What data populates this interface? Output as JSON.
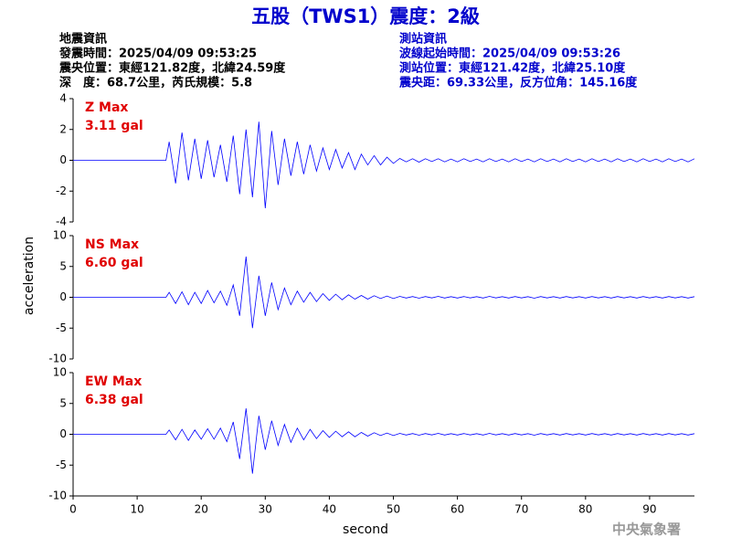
{
  "title": "五股（TWS1）震度：2級",
  "info_left": [
    "地震資訊",
    "發震時間：2025/04/09 09:53:25",
    "震央位置：東經121.82度，北緯24.59度",
    "深　度：68.7公里，芮氏規模：5.8"
  ],
  "info_right": [
    "測站資訊",
    "波線起始時間：2025/04/09 09:53:26",
    "測站位置：東經121.42度，北緯25.10度",
    "震央距：69.33公里，反方位角：145.16度"
  ],
  "y_label": "acceleration",
  "x_label": "second",
  "footer": "中央氣象署",
  "chart_data": [
    {
      "type": "line",
      "max_label": "Z Max",
      "max_value_label": "3.11 gal",
      "color": "#0000ff",
      "x": [
        0,
        14.5,
        15,
        16,
        17,
        18,
        19,
        20,
        21,
        22,
        23,
        24,
        25,
        26,
        27,
        28,
        29,
        30,
        31,
        32,
        33,
        34,
        35,
        36,
        37,
        38,
        39,
        40,
        41,
        42,
        43,
        44,
        45,
        46,
        47,
        48,
        49,
        50,
        51,
        52,
        53,
        54,
        55,
        56,
        57,
        58,
        59,
        60,
        61,
        62,
        63,
        64,
        65,
        66,
        67,
        68,
        69,
        70,
        71,
        72,
        73,
        74,
        75,
        76,
        77,
        78,
        79,
        80,
        81,
        82,
        83,
        84,
        85,
        86,
        87,
        88,
        89,
        90,
        91,
        92,
        93,
        94,
        95,
        96,
        97
      ],
      "values": [
        0,
        0,
        1.2,
        -1.5,
        1.8,
        -1.3,
        1.4,
        -1.2,
        1.3,
        -1.1,
        1.0,
        -1.4,
        1.6,
        -2.2,
        2.0,
        -2.4,
        2.5,
        -3.11,
        1.9,
        -1.6,
        1.4,
        -1.0,
        1.2,
        -0.9,
        1.0,
        -0.7,
        0.8,
        -0.6,
        0.7,
        -0.5,
        0.5,
        -0.6,
        0.4,
        -0.3,
        0.3,
        -0.3,
        0.2,
        -0.2,
        0.12,
        -0.1,
        0.1,
        -0.12,
        0.1,
        -0.08,
        0.1,
        -0.1,
        0.08,
        -0.1,
        0.1,
        -0.08,
        0.08,
        -0.1,
        0.1,
        -0.08,
        0.08,
        -0.1,
        0.1,
        -0.08,
        0.08,
        -0.1,
        0.1,
        -0.08,
        0.08,
        -0.1,
        0.1,
        -0.08,
        0.08,
        -0.1,
        0.1,
        -0.08,
        0.08,
        -0.1,
        0.1,
        -0.08,
        0.08,
        -0.1,
        0.1,
        -0.08,
        0.08,
        -0.1,
        0.1,
        -0.08,
        0.08,
        -0.1,
        0.1
      ],
      "xlim": [
        0,
        97
      ],
      "ylim": [
        -4,
        4
      ],
      "yticks": [
        -4,
        -2,
        0,
        2,
        4
      ]
    },
    {
      "type": "line",
      "max_label": "NS Max",
      "max_value_label": "6.60 gal",
      "color": "#0000ff",
      "x": [
        0,
        14.5,
        15,
        16,
        17,
        18,
        19,
        20,
        21,
        22,
        23,
        24,
        25,
        26,
        27,
        28,
        29,
        30,
        31,
        32,
        33,
        34,
        35,
        36,
        37,
        38,
        39,
        40,
        41,
        42,
        43,
        44,
        45,
        46,
        47,
        48,
        49,
        50,
        51,
        52,
        53,
        54,
        55,
        56,
        57,
        58,
        59,
        60,
        61,
        62,
        63,
        64,
        65,
        66,
        67,
        68,
        69,
        70,
        71,
        72,
        73,
        74,
        75,
        76,
        77,
        78,
        79,
        80,
        81,
        82,
        83,
        84,
        85,
        86,
        87,
        88,
        89,
        90,
        91,
        92,
        93,
        94,
        95,
        96,
        97
      ],
      "values": [
        0,
        0,
        0.8,
        -1.0,
        0.9,
        -1.2,
        0.8,
        -1.0,
        1.1,
        -0.9,
        1.0,
        -1.3,
        2.0,
        -3.0,
        6.6,
        -5.0,
        3.5,
        -3.0,
        2.4,
        -2.0,
        1.5,
        -1.2,
        1.0,
        -0.8,
        0.8,
        -0.7,
        0.6,
        -0.5,
        0.5,
        -0.4,
        0.4,
        -0.3,
        0.3,
        -0.3,
        0.25,
        -0.2,
        0.2,
        -0.2,
        0.15,
        -0.12,
        0.12,
        -0.15,
        0.12,
        -0.1,
        0.15,
        -0.12,
        0.1,
        -0.12,
        0.12,
        -0.1,
        0.1,
        -0.12,
        0.15,
        -0.1,
        0.1,
        -0.12,
        0.12,
        -0.1,
        0.1,
        -0.15,
        0.12,
        -0.1,
        0.1,
        -0.12,
        0.12,
        -0.1,
        0.1,
        -0.12,
        0.12,
        -0.1,
        0.1,
        -0.12,
        0.12,
        -0.1,
        0.1,
        -0.12,
        0.12,
        -0.1,
        0.1,
        -0.12,
        0.12,
        -0.1,
        0.1,
        -0.12,
        0.1
      ],
      "xlim": [
        0,
        97
      ],
      "ylim": [
        -10,
        10
      ],
      "yticks": [
        -10,
        -5,
        0,
        5,
        10
      ]
    },
    {
      "type": "line",
      "max_label": "EW Max",
      "max_value_label": "6.38 gal",
      "color": "#0000ff",
      "x": [
        0,
        14.5,
        15,
        16,
        17,
        18,
        19,
        20,
        21,
        22,
        23,
        24,
        25,
        26,
        27,
        28,
        29,
        30,
        31,
        32,
        33,
        34,
        35,
        36,
        37,
        38,
        39,
        40,
        41,
        42,
        43,
        44,
        45,
        46,
        47,
        48,
        49,
        50,
        51,
        52,
        53,
        54,
        55,
        56,
        57,
        58,
        59,
        60,
        61,
        62,
        63,
        64,
        65,
        66,
        67,
        68,
        69,
        70,
        71,
        72,
        73,
        74,
        75,
        76,
        77,
        78,
        79,
        80,
        81,
        82,
        83,
        84,
        85,
        86,
        87,
        88,
        89,
        90,
        91,
        92,
        93,
        94,
        95,
        96,
        97
      ],
      "values": [
        0,
        0,
        0.7,
        -0.9,
        0.8,
        -1.0,
        0.7,
        -0.8,
        0.9,
        -0.8,
        1.0,
        -1.2,
        2.0,
        -4.0,
        4.2,
        -6.38,
        3.0,
        -2.5,
        2.2,
        -1.8,
        1.6,
        -1.3,
        1.0,
        -0.9,
        0.8,
        -0.7,
        0.6,
        -0.5,
        0.5,
        -0.4,
        0.4,
        -0.4,
        0.3,
        -0.3,
        0.25,
        -0.2,
        0.2,
        -0.2,
        0.15,
        -0.12,
        0.12,
        -0.15,
        0.12,
        -0.1,
        0.15,
        -0.12,
        0.1,
        -0.12,
        0.12,
        -0.1,
        0.1,
        -0.12,
        0.15,
        -0.1,
        0.1,
        -0.12,
        0.12,
        -0.1,
        0.1,
        -0.15,
        0.12,
        -0.1,
        0.1,
        -0.12,
        0.12,
        -0.1,
        0.1,
        -0.12,
        0.12,
        -0.1,
        0.1,
        -0.12,
        0.12,
        -0.1,
        0.1,
        -0.12,
        0.12,
        -0.1,
        0.1,
        -0.12,
        0.12,
        -0.1,
        0.1,
        -0.12,
        0.1
      ],
      "xlim": [
        0,
        97
      ],
      "ylim": [
        -10,
        10
      ],
      "yticks": [
        -10,
        -5,
        0,
        5,
        10
      ],
      "xticks": [
        0,
        10,
        20,
        30,
        40,
        50,
        60,
        70,
        80,
        90
      ]
    }
  ]
}
